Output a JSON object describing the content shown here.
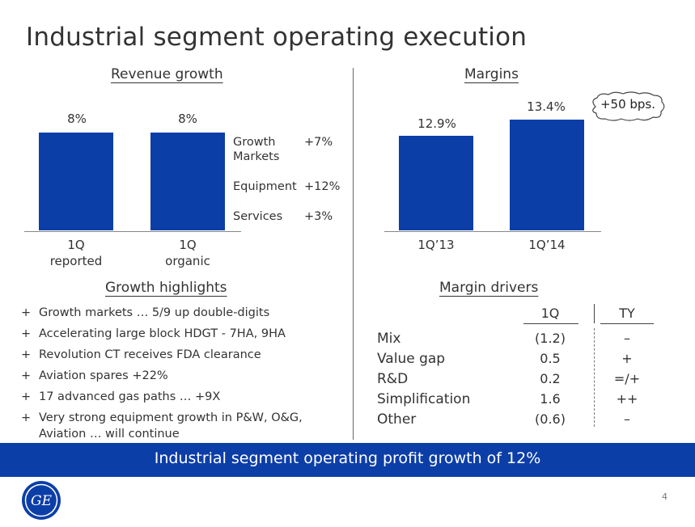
{
  "title": "Industrial segment operating execution",
  "revenue": {
    "heading": "Revenue growth",
    "bars": [
      {
        "label_top": "8%",
        "cat_line1": "1Q",
        "cat_line2": "reported",
        "value": 8
      },
      {
        "label_top": "8%",
        "cat_line1": "1Q",
        "cat_line2": "organic",
        "value": 8
      }
    ],
    "legend": [
      {
        "name_line1": "Growth",
        "name_line2": "Markets",
        "value": "+7%"
      },
      {
        "name_line1": "Equipment",
        "name_line2": "",
        "value": "+12%"
      },
      {
        "name_line1": "Services",
        "name_line2": "",
        "value": "+3%"
      }
    ]
  },
  "margins": {
    "heading": "Margins",
    "bars": [
      {
        "label_top": "12.9%",
        "category": "1Q’13",
        "value": 12.9
      },
      {
        "label_top": "13.4%",
        "category": "1Q’14",
        "value": 13.4
      }
    ],
    "callout": "+50 bps."
  },
  "highlights": {
    "heading": "Growth highlights",
    "bullet": "+",
    "items": [
      {
        "line1": "Growth markets … 5/9 up double-digits",
        "line2": ""
      },
      {
        "line1": "Accelerating large block HDGT - 7HA, 9HA",
        "line2": ""
      },
      {
        "line1": "Revolution CT receives FDA clearance",
        "line2": ""
      },
      {
        "line1": "Aviation spares +22%",
        "line2": ""
      },
      {
        "line1": "17 advanced gas paths … +9X",
        "line2": ""
      },
      {
        "line1": "Very strong equipment growth in P&W, O&G,",
        "line2": "Aviation … will continue"
      }
    ]
  },
  "drivers": {
    "heading": "Margin drivers",
    "col_1q": "1Q",
    "col_ty": "TY",
    "rows": [
      {
        "label": "Mix",
        "q": "(1.2)",
        "ty": "–"
      },
      {
        "label": "Value gap",
        "q": "0.5",
        "ty": "+"
      },
      {
        "label": "R&D",
        "q": "0.2",
        "ty": "=/+"
      },
      {
        "label": "Simplification",
        "q": "1.6",
        "ty": "++"
      },
      {
        "label": "Other",
        "q": "(0.6)",
        "ty": "–"
      }
    ]
  },
  "banner": "Industrial segment operating profit growth of 12%",
  "page_number": "4",
  "logo_text": "GE",
  "colors": {
    "brand_blue": "#0c3ea8"
  }
}
